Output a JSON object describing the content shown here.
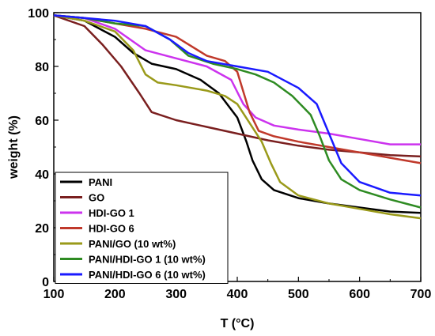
{
  "chart_data": {
    "type": "line",
    "title": "",
    "xlabel": "T (°C)",
    "ylabel": "weight (%)",
    "xlim": [
      100,
      700
    ],
    "ylim": [
      0,
      100
    ],
    "xticks": [
      100,
      200,
      300,
      400,
      500,
      600,
      700
    ],
    "yticks": [
      0,
      20,
      40,
      60,
      80,
      100
    ],
    "grid": false,
    "legend_position": "bottom-left",
    "series": [
      {
        "name": "PANI",
        "color": "#000000",
        "points": [
          [
            100,
            99
          ],
          [
            150,
            97
          ],
          [
            200,
            91
          ],
          [
            230,
            85
          ],
          [
            260,
            81
          ],
          [
            300,
            79
          ],
          [
            340,
            75
          ],
          [
            370,
            70
          ],
          [
            400,
            61
          ],
          [
            415,
            52
          ],
          [
            425,
            45
          ],
          [
            440,
            38
          ],
          [
            460,
            34
          ],
          [
            500,
            31
          ],
          [
            550,
            29
          ],
          [
            600,
            27.5
          ],
          [
            650,
            26
          ],
          [
            700,
            25.5
          ]
        ]
      },
      {
        "name": "GO",
        "color": "#7a1f1f",
        "points": [
          [
            100,
            99
          ],
          [
            150,
            95
          ],
          [
            180,
            88
          ],
          [
            210,
            80
          ],
          [
            240,
            70
          ],
          [
            260,
            63
          ],
          [
            300,
            60
          ],
          [
            350,
            57.5
          ],
          [
            400,
            55
          ],
          [
            450,
            52.5
          ],
          [
            500,
            50.5
          ],
          [
            550,
            49
          ],
          [
            600,
            48
          ],
          [
            650,
            47
          ],
          [
            700,
            46.5
          ]
        ]
      },
      {
        "name": "HDI-GO 1",
        "color": "#cc33ee",
        "points": [
          [
            100,
            99
          ],
          [
            150,
            98
          ],
          [
            200,
            94
          ],
          [
            250,
            86
          ],
          [
            300,
            83
          ],
          [
            350,
            80
          ],
          [
            390,
            75
          ],
          [
            410,
            66
          ],
          [
            430,
            61
          ],
          [
            460,
            58
          ],
          [
            500,
            56.5
          ],
          [
            550,
            55
          ],
          [
            600,
            53
          ],
          [
            650,
            51
          ],
          [
            700,
            51
          ]
        ]
      },
      {
        "name": "HDI-GO 6",
        "color": "#c0392b",
        "points": [
          [
            100,
            99
          ],
          [
            150,
            98
          ],
          [
            200,
            96
          ],
          [
            250,
            94
          ],
          [
            300,
            91
          ],
          [
            350,
            84
          ],
          [
            380,
            82
          ],
          [
            400,
            78
          ],
          [
            420,
            63
          ],
          [
            435,
            56
          ],
          [
            460,
            54
          ],
          [
            500,
            52
          ],
          [
            550,
            50
          ],
          [
            600,
            48
          ],
          [
            650,
            46
          ],
          [
            700,
            44
          ]
        ]
      },
      {
        "name": "PANI/GO (10 wt%)",
        "color": "#9a9a1a",
        "points": [
          [
            100,
            99
          ],
          [
            150,
            97
          ],
          [
            200,
            93
          ],
          [
            230,
            86
          ],
          [
            250,
            77
          ],
          [
            270,
            74
          ],
          [
            300,
            73
          ],
          [
            350,
            71
          ],
          [
            380,
            69
          ],
          [
            400,
            66
          ],
          [
            420,
            59
          ],
          [
            440,
            52
          ],
          [
            455,
            44
          ],
          [
            470,
            37
          ],
          [
            500,
            32
          ],
          [
            550,
            29
          ],
          [
            600,
            27
          ],
          [
            650,
            25
          ],
          [
            700,
            23.5
          ]
        ]
      },
      {
        "name": "PANI/HDI-GO 1 (10 wt%)",
        "color": "#2e8b22",
        "points": [
          [
            100,
            99
          ],
          [
            150,
            98
          ],
          [
            200,
            96
          ],
          [
            250,
            95
          ],
          [
            290,
            90
          ],
          [
            320,
            84
          ],
          [
            360,
            81
          ],
          [
            400,
            79
          ],
          [
            430,
            77
          ],
          [
            460,
            74
          ],
          [
            490,
            69
          ],
          [
            520,
            62
          ],
          [
            535,
            54
          ],
          [
            550,
            45
          ],
          [
            570,
            38
          ],
          [
            600,
            34
          ],
          [
            650,
            30.5
          ],
          [
            700,
            27.5
          ]
        ]
      },
      {
        "name": "PANI/HDI-GO 6 (10 wt%)",
        "color": "#1a1aff",
        "points": [
          [
            100,
            99
          ],
          [
            150,
            98
          ],
          [
            200,
            97
          ],
          [
            250,
            95
          ],
          [
            290,
            90
          ],
          [
            320,
            85
          ],
          [
            350,
            82
          ],
          [
            400,
            80
          ],
          [
            450,
            78
          ],
          [
            500,
            72
          ],
          [
            530,
            66
          ],
          [
            550,
            55
          ],
          [
            570,
            44
          ],
          [
            600,
            37
          ],
          [
            650,
            33
          ],
          [
            700,
            32
          ]
        ]
      }
    ]
  }
}
